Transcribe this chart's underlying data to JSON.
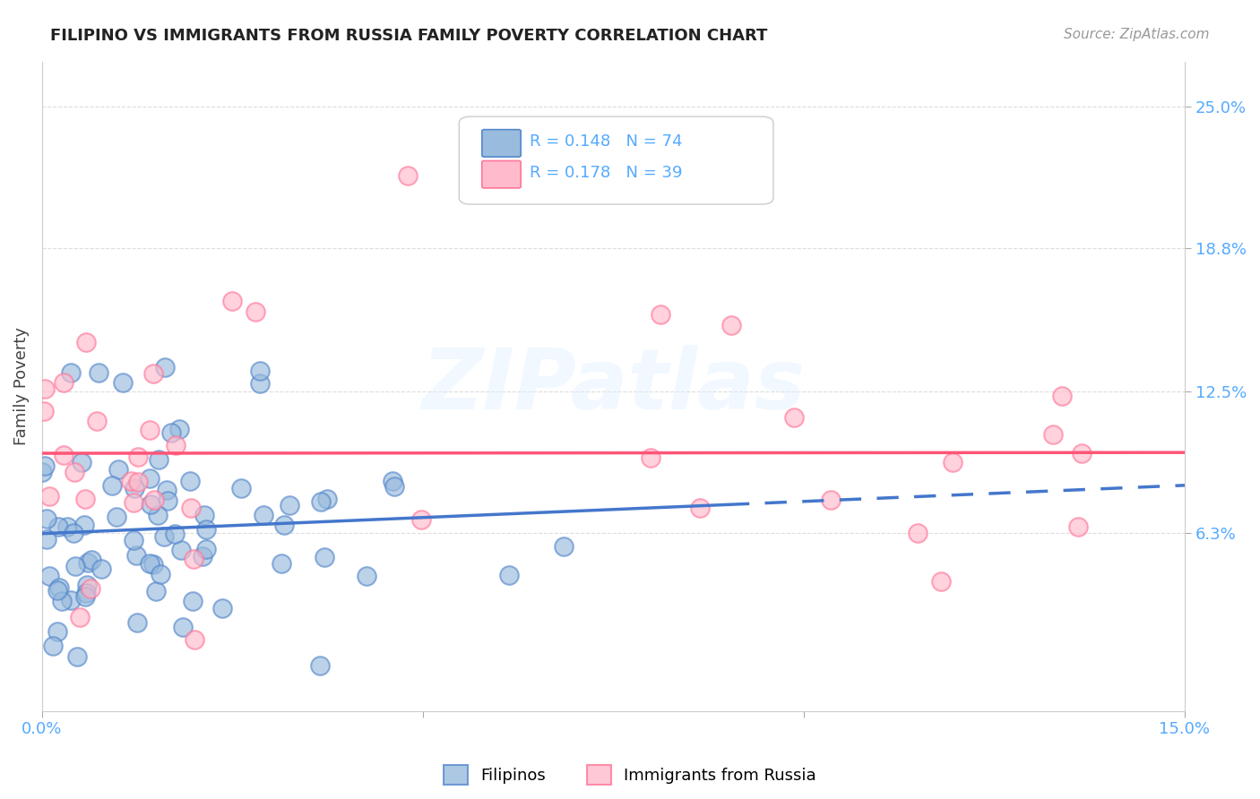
{
  "title": "FILIPINO VS IMMIGRANTS FROM RUSSIA FAMILY POVERTY CORRELATION CHART",
  "source": "Source: ZipAtlas.com",
  "ylabel": "Family Poverty",
  "x_min": 0.0,
  "x_max": 0.15,
  "y_min": -0.015,
  "y_max": 0.27,
  "y_ticks": [
    0.063,
    0.125,
    0.188,
    0.25
  ],
  "y_tick_labels": [
    "6.3%",
    "12.5%",
    "18.8%",
    "25.0%"
  ],
  "x_ticks": [
    0.0,
    0.05,
    0.1,
    0.15
  ],
  "x_tick_labels": [
    "0.0%",
    "",
    "",
    "15.0%"
  ],
  "legend_label1": "Filipinos",
  "legend_label2": "Immigrants from Russia",
  "r1": 0.148,
  "n1": 74,
  "r2": 0.178,
  "n2": 39,
  "color_blue_fill": "#99BBDD",
  "color_blue_edge": "#5588CC",
  "color_pink_fill": "#FFBBCC",
  "color_pink_edge": "#FF7799",
  "color_blue_line": "#4477CC",
  "color_pink_line": "#FF5577",
  "color_axis_label": "#55AAFF",
  "grid_color": "#dddddd",
  "background": "#ffffff",
  "trend_blue_x0": 0.0,
  "trend_blue_solid_end": 0.09,
  "trend_blue_x1": 0.15,
  "trend_pink_x0": 0.0,
  "trend_pink_x1": 0.15
}
